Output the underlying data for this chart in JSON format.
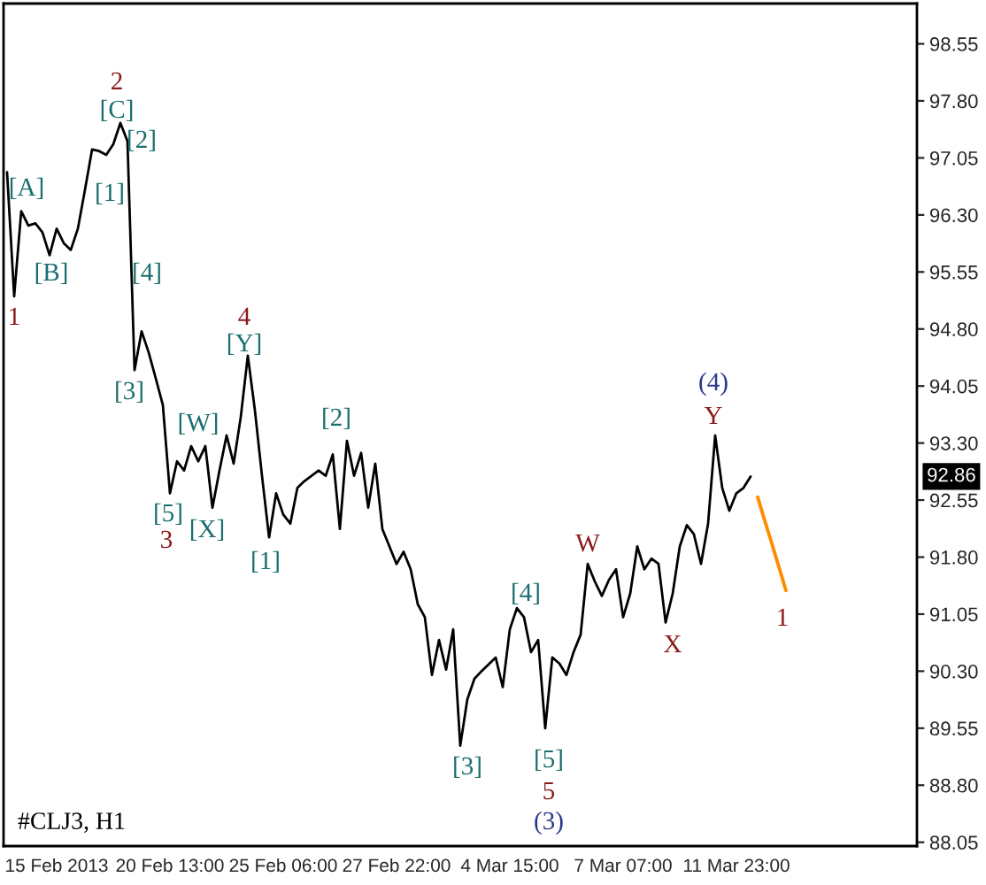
{
  "chart_data": {
    "type": "line",
    "categories": [
      null,
      null,
      null,
      null,
      null,
      null,
      null,
      "15 Feb 2013",
      null,
      null,
      null,
      null,
      null,
      null,
      null,
      null,
      null,
      null,
      null,
      null,
      null,
      null,
      null,
      "20 Feb 13:00",
      null,
      null,
      null,
      null,
      null,
      null,
      null,
      null,
      null,
      null,
      null,
      null,
      null,
      null,
      null,
      "25 Feb 06:00",
      null,
      null,
      null,
      null,
      null,
      null,
      null,
      null,
      null,
      null,
      null,
      null,
      null,
      null,
      null,
      "27 Feb 22:00",
      null,
      null,
      null,
      null,
      null,
      null,
      null,
      null,
      null,
      null,
      null,
      null,
      null,
      null,
      null,
      "4 Mar 15:00",
      null,
      null,
      null,
      null,
      null,
      null,
      null,
      null,
      null,
      null,
      null,
      null,
      null,
      null,
      null,
      "7 Mar 07:00",
      null,
      null,
      null,
      null,
      null,
      null,
      null,
      null,
      null,
      null,
      null,
      null,
      null,
      null,
      null,
      "11 Mar 23:00",
      null,
      null,
      null,
      null,
      null,
      null,
      null,
      null,
      null,
      null,
      null,
      null,
      null,
      null,
      null,
      null,
      null,
      null,
      null,
      null,
      null,
      null,
      null,
      null,
      null
    ],
    "ylim": [
      88.0,
      99.08
    ],
    "yticks": [
      88.05,
      {
        "value": 88.8,
        "label": "88.80"
      },
      89.55,
      {
        "value": 90.3,
        "label": "90.30"
      },
      91.05,
      {
        "value": 91.8,
        "label": "91.80"
      },
      92.55,
      {
        "value": 93.3,
        "label": "93.30"
      },
      94.05,
      {
        "value": 94.8,
        "label": "94.80"
      },
      95.55,
      {
        "value": 96.3,
        "label": "96.30"
      },
      97.05,
      {
        "value": 97.8,
        "label": "97.80"
      },
      98.55
    ],
    "grid": false,
    "legend": false,
    "series": [
      {
        "color": "#000000",
        "values": [
          96.86,
          95.23,
          96.35,
          96.16,
          96.19,
          96.07,
          95.77,
          96.12,
          95.93,
          95.84,
          96.12,
          96.63,
          97.16,
          97.14,
          97.09,
          97.23,
          97.51,
          97.27,
          94.26,
          94.77,
          94.49,
          94.15,
          93.8,
          92.64,
          93.06,
          92.94,
          93.26,
          93.06,
          93.26,
          92.45,
          92.94,
          93.4,
          93.03,
          93.64,
          94.45,
          93.73,
          92.87,
          92.06,
          92.64,
          92.36,
          92.24,
          92.71,
          92.8,
          92.87,
          92.94,
          92.87,
          93.15,
          92.17,
          93.33,
          92.87,
          93.17,
          92.45,
          93.03,
          92.17,
          91.94,
          91.71,
          91.87,
          91.64,
          91.18,
          91.01,
          90.25,
          90.71,
          90.32,
          90.85,
          89.32,
          89.93,
          90.2,
          90.3,
          90.39,
          90.48,
          90.09,
          90.85,
          91.13,
          91.01,
          90.55,
          90.71,
          89.55,
          90.48,
          90.4,
          90.25,
          90.55,
          90.78,
          91.71,
          91.48,
          91.29,
          91.5,
          91.64,
          91.01,
          91.32,
          91.94,
          91.64,
          91.78,
          91.71,
          90.94,
          91.32,
          91.94,
          92.22,
          92.1,
          91.71,
          92.24,
          93.4,
          92.71,
          92.41,
          92.64,
          92.71,
          92.86,
          null,
          null,
          null,
          null,
          null,
          null,
          null,
          null,
          null,
          null,
          null,
          null,
          null,
          null,
          null,
          null,
          null,
          null,
          null,
          null,
          null,
          null,
          null
        ]
      },
      {
        "color": "#ff8c00",
        "values": [
          null,
          null,
          null,
          null,
          null,
          null,
          null,
          null,
          null,
          null,
          null,
          null,
          null,
          null,
          null,
          null,
          null,
          null,
          null,
          null,
          null,
          null,
          null,
          null,
          null,
          null,
          null,
          null,
          null,
          null,
          null,
          null,
          null,
          null,
          null,
          null,
          null,
          null,
          null,
          null,
          null,
          null,
          null,
          null,
          null,
          null,
          null,
          null,
          null,
          null,
          null,
          null,
          null,
          null,
          null,
          null,
          null,
          null,
          null,
          null,
          null,
          null,
          null,
          null,
          null,
          null,
          null,
          null,
          null,
          null,
          null,
          null,
          null,
          null,
          null,
          null,
          null,
          null,
          null,
          null,
          null,
          null,
          null,
          null,
          null,
          null,
          null,
          null,
          null,
          null,
          null,
          null,
          null,
          null,
          null,
          null,
          null,
          null,
          null,
          null,
          null,
          null,
          null,
          null,
          null,
          null,
          92.59,
          92.28,
          91.98,
          91.67,
          91.36,
          null,
          null,
          null,
          null,
          null,
          null,
          null,
          null,
          null,
          null,
          null,
          null,
          null,
          null,
          null,
          null,
          null,
          null
        ]
      }
    ],
    "annotations": [
      "1",
      "[A]",
      "[B]",
      "2",
      "[C]",
      "[2]",
      "[1]",
      "[4]",
      "[3]",
      "4",
      "[Y]",
      "[W]",
      "[2]",
      "[5]",
      "3",
      "[X]",
      "[1]",
      "[3]",
      "[4]",
      "[5]",
      "5",
      "(3)",
      "W",
      "X",
      "Y",
      "(4)",
      "1",
      "#CLJ3, H1",
      "92.86"
    ]
  }
}
